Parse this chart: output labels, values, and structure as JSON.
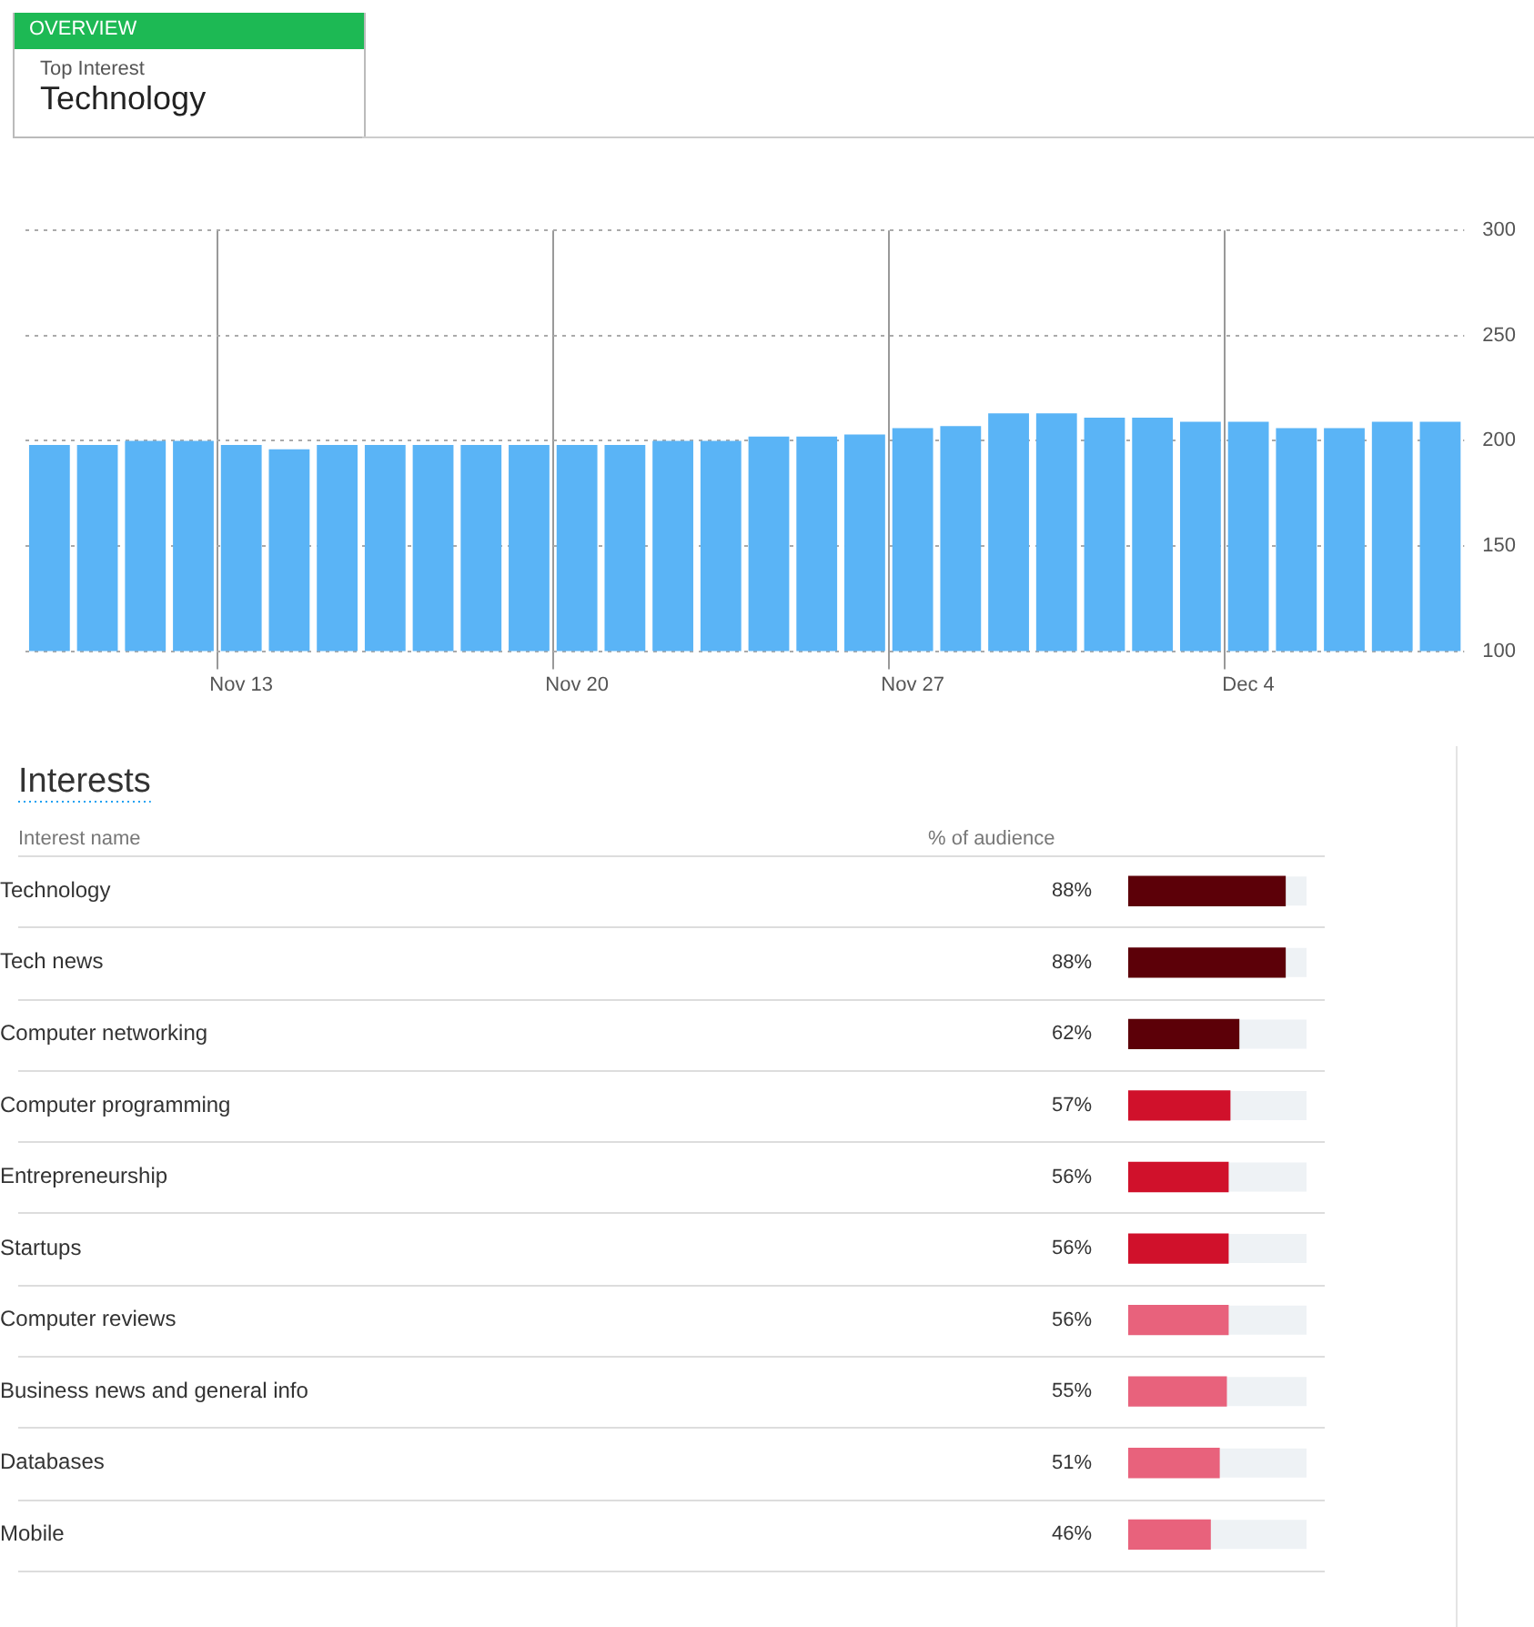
{
  "chart_data": [
    {
      "type": "other",
      "title": "OVERVIEW",
      "subtitle": "Top Interest",
      "annotations": [
        "Technology"
      ]
    },
    {
      "type": "bar",
      "categories": [
        null,
        null,
        null,
        null,
        "Nov 13",
        null,
        null,
        null,
        null,
        null,
        null,
        "Nov 20",
        null,
        null,
        null,
        null,
        null,
        null,
        "Nov 27",
        null,
        null,
        null,
        null,
        null,
        null,
        "Dec 4",
        null,
        null,
        null,
        null
      ],
      "values": [
        198,
        198,
        200,
        200,
        198,
        196,
        198,
        198,
        198,
        198,
        198,
        198,
        198,
        200,
        200,
        202,
        202,
        203,
        206,
        207,
        213,
        213,
        211,
        211,
        209,
        209,
        206,
        206,
        209,
        209
      ],
      "color": "#5ab4f6",
      "ylim": [
        100,
        300
      ],
      "yticks": [
        100,
        150,
        200,
        250,
        300
      ],
      "grid": true,
      "legend": false
    },
    {
      "type": "bar",
      "orientation": "horizontal",
      "title": "Interests",
      "ylabel": "Interest name",
      "xlabel": "% of audience",
      "categories": [
        "Technology",
        "Tech news",
        "Computer networking",
        "Computer programming",
        "Entrepreneurship",
        "Startups",
        "Computer reviews",
        "Business news and general info",
        "Databases",
        "Mobile"
      ],
      "values": [
        88,
        88,
        62,
        57,
        56,
        56,
        56,
        55,
        51,
        46
      ],
      "value_labels": [
        "88%",
        "88%",
        "62%",
        "57%",
        "56%",
        "56%",
        "56%",
        "55%",
        "51%",
        "46%"
      ],
      "colors": [
        "#5c0008",
        "#5c0008",
        "#5c0008",
        "#d0112b",
        "#d0112b",
        "#d0112b",
        "#e8627c",
        "#e8627c",
        "#e8627c",
        "#e8627c"
      ],
      "xlim": [
        0,
        100
      ],
      "tick_labels": "y",
      "grid": "y",
      "legend": false
    }
  ]
}
